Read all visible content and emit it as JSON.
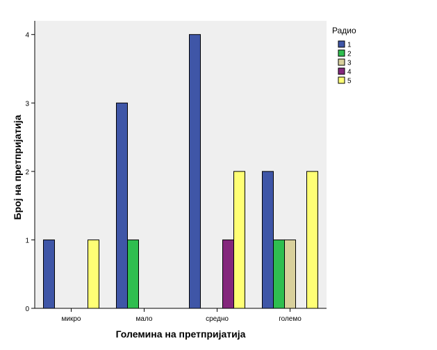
{
  "chart_data": {
    "type": "bar",
    "title": "",
    "xlabel": "Големина на претпријатија",
    "ylabel": "Број на претпријатија",
    "categories": [
      "микро",
      "мало",
      "средно",
      "големо"
    ],
    "series": [
      {
        "name": "1",
        "color": "#3f56a7",
        "values": [
          1,
          3,
          4,
          2
        ]
      },
      {
        "name": "2",
        "color": "#2fbe4f",
        "values": [
          0,
          1,
          0,
          1
        ]
      },
      {
        "name": "3",
        "color": "#d8d09c",
        "values": [
          0,
          0,
          0,
          1
        ]
      },
      {
        "name": "4",
        "color": "#84277c",
        "values": [
          0,
          0,
          1,
          0
        ]
      },
      {
        "name": "5",
        "color": "#ffff75",
        "values": [
          1,
          0,
          2,
          2
        ]
      }
    ],
    "ylim": [
      0,
      4.2
    ],
    "yticks": [
      0,
      1,
      2,
      3,
      4
    ],
    "legend": {
      "title": "Радио",
      "placement": "right"
    },
    "grid": false,
    "plot_background": "#efefef"
  }
}
